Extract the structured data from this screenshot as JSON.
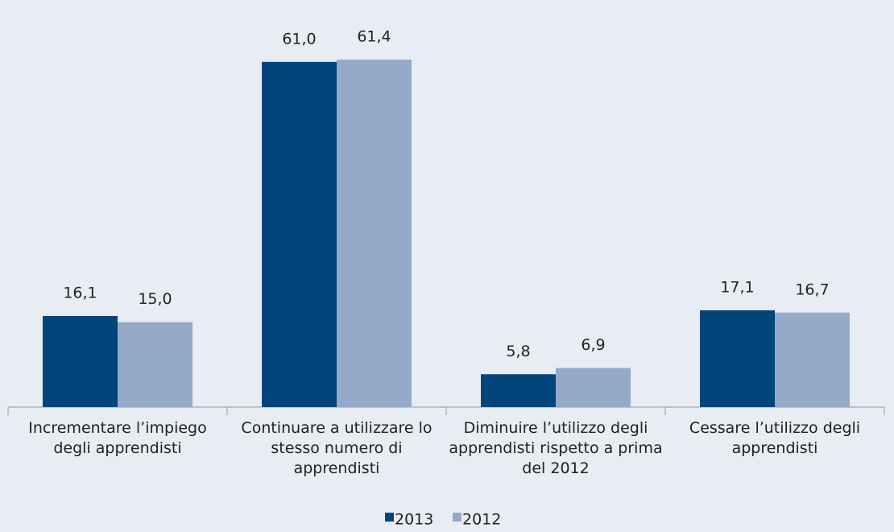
{
  "chart_data": {
    "type": "bar",
    "categories": [
      "Incrementare l’impiego degli apprendisti",
      "Continuare a utilizzare lo stesso numero di apprendisti",
      "Diminuire l’utilizzo degli apprendisti rispetto a prima del 2012",
      "Cessare l’utilizzo degli apprendisti"
    ],
    "series": [
      {
        "name": "2013",
        "color": "#00457c",
        "values": [
          16.1,
          61.0,
          5.8,
          17.1
        ],
        "value_labels": [
          "16,1",
          "61,0",
          "5,8",
          "17,1"
        ]
      },
      {
        "name": "2012",
        "color": "#95a9c8",
        "values": [
          15.0,
          61.4,
          6.9,
          16.7
        ],
        "value_labels": [
          "15,0",
          "61,4",
          "6,9",
          "16,7"
        ]
      }
    ],
    "legend": "bottom"
  }
}
